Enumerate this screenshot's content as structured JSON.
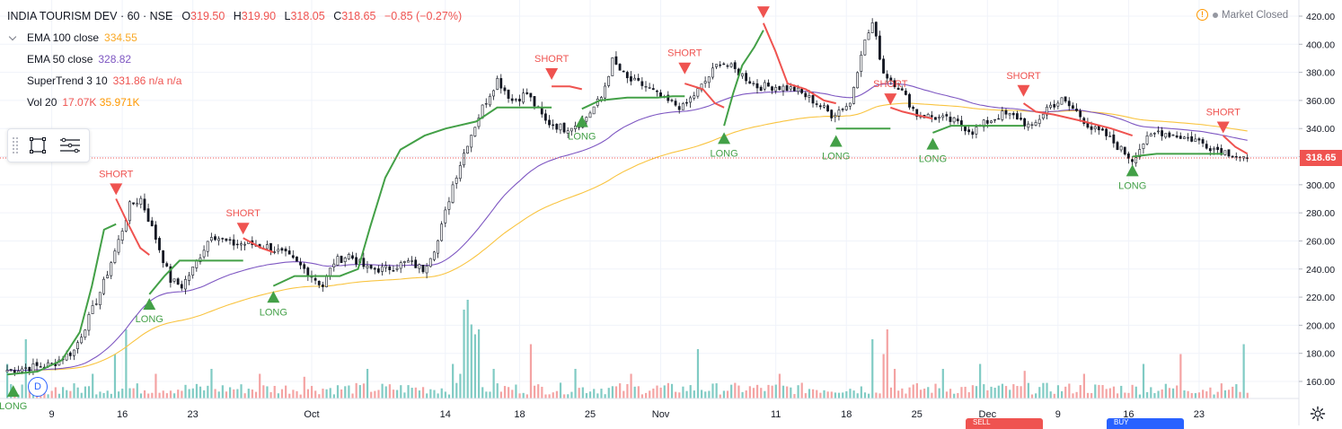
{
  "header": {
    "symbol": "INDIA TOURISM DEV · 60 · NSE",
    "open_label": "O",
    "open": "319.50",
    "high_label": "H",
    "high": "319.90",
    "low_label": "L",
    "low": "318.05",
    "close_label": "C",
    "close": "318.65",
    "change": "−0.85 (−0.27%)"
  },
  "indicators": {
    "ema100": {
      "name": "EMA 100 close",
      "value": "334.55"
    },
    "ema50": {
      "name": "EMA 50 close",
      "value": "328.82"
    },
    "supertrend": {
      "name": "SuperTrend 3 10",
      "value": "331.86",
      "extra": "n/a  n/a"
    },
    "volume": {
      "name": "Vol 20",
      "value1": "17.07K",
      "value2": "35.971K"
    }
  },
  "status": {
    "market": "Market Closed",
    "warning_glyph": "!"
  },
  "badges": {
    "dividend": "D",
    "last_price": "318.65"
  },
  "bottom_buttons": {
    "sell": "SELL",
    "buy": "BUY"
  },
  "colors": {
    "up": "#26a69a",
    "down": "#ef5350",
    "candle": "#131722",
    "ema100": "#f9c440",
    "ema50": "#7e57c2",
    "st_up": "#43a047",
    "st_down": "#ef5350",
    "vol_up": "#80cbc4",
    "vol_down": "#f4a3a3"
  },
  "chart_data": {
    "type": "candlestick",
    "title": "INDIA TOURISM DEV · 60 · NSE",
    "ylim": [
      150,
      425
    ],
    "y_ticks": [
      160,
      180,
      200,
      220,
      240,
      260,
      280,
      300,
      320,
      340,
      360,
      380,
      400,
      420
    ],
    "y_tick_labels": [
      "160.00",
      "180.00",
      "200.00",
      "220.00",
      "240.00",
      "260.00",
      "280.00",
      "300.00",
      "320.00",
      "340.00",
      "360.00",
      "380.00",
      "400.00",
      "420.00"
    ],
    "x_tick_labels": [
      "9",
      "16",
      "23",
      "Oct",
      "14",
      "18",
      "25",
      "Nov",
      "11",
      "18",
      "25",
      "Dec",
      "9",
      "16",
      "23"
    ],
    "x_tick_bars": [
      12,
      31,
      50,
      82,
      118,
      138,
      157,
      176,
      207,
      226,
      245,
      264,
      283,
      302,
      321
    ],
    "bar_count": 345,
    "price_keypoints": [
      [
        0,
        168
      ],
      [
        6,
        170
      ],
      [
        12,
        172
      ],
      [
        18,
        182
      ],
      [
        22,
        205
      ],
      [
        26,
        230
      ],
      [
        30,
        260
      ],
      [
        33,
        285
      ],
      [
        36,
        290
      ],
      [
        40,
        262
      ],
      [
        44,
        232
      ],
      [
        47,
        228
      ],
      [
        50,
        240
      ],
      [
        55,
        265
      ],
      [
        60,
        258
      ],
      [
        65,
        258
      ],
      [
        70,
        256
      ],
      [
        75,
        250
      ],
      [
        80,
        240
      ],
      [
        85,
        228
      ],
      [
        88,
        245
      ],
      [
        92,
        250
      ],
      [
        97,
        240
      ],
      [
        102,
        240
      ],
      [
        108,
        245
      ],
      [
        112,
        240
      ],
      [
        116,
        260
      ],
      [
        120,
        300
      ],
      [
        124,
        330
      ],
      [
        128,
        355
      ],
      [
        132,
        375
      ],
      [
        136,
        360
      ],
      [
        140,
        365
      ],
      [
        145,
        345
      ],
      [
        150,
        340
      ],
      [
        155,
        345
      ],
      [
        160,
        362
      ],
      [
        163,
        388
      ],
      [
        167,
        375
      ],
      [
        172,
        370
      ],
      [
        177,
        360
      ],
      [
        182,
        355
      ],
      [
        187,
        370
      ],
      [
        192,
        388
      ],
      [
        197,
        380
      ],
      [
        202,
        370
      ],
      [
        207,
        370
      ],
      [
        212,
        368
      ],
      [
        217,
        360
      ],
      [
        222,
        350
      ],
      [
        227,
        358
      ],
      [
        230,
        395
      ],
      [
        233,
        415
      ],
      [
        236,
        380
      ],
      [
        240,
        370
      ],
      [
        245,
        350
      ],
      [
        250,
        348
      ],
      [
        255,
        345
      ],
      [
        260,
        338
      ],
      [
        264,
        345
      ],
      [
        268,
        350
      ],
      [
        272,
        348
      ],
      [
        276,
        340
      ],
      [
        280,
        355
      ],
      [
        284,
        360
      ],
      [
        288,
        352
      ],
      [
        292,
        340
      ],
      [
        296,
        335
      ],
      [
        300,
        325
      ],
      [
        303,
        318
      ],
      [
        306,
        330
      ],
      [
        310,
        338
      ],
      [
        315,
        335
      ],
      [
        320,
        332
      ],
      [
        325,
        326
      ],
      [
        330,
        322
      ],
      [
        333,
        319
      ],
      [
        334,
        318.65
      ]
    ],
    "supertrend": [
      {
        "dir": "up",
        "start": 0,
        "points": [
          [
            0,
            165
          ],
          [
            10,
            167
          ],
          [
            18,
            175
          ],
          [
            24,
            195
          ],
          [
            28,
            228
          ],
          [
            32,
            268
          ],
          [
            36,
            272
          ]
        ]
      },
      {
        "dir": "down",
        "start": 36,
        "points": [
          [
            36,
            290
          ],
          [
            40,
            272
          ],
          [
            44,
            255
          ],
          [
            47,
            250
          ]
        ]
      },
      {
        "dir": "up",
        "start": 47,
        "points": [
          [
            47,
            222
          ],
          [
            52,
            235
          ],
          [
            57,
            246
          ],
          [
            62,
            246
          ],
          [
            70,
            246
          ],
          [
            78,
            246
          ]
        ]
      },
      {
        "dir": "down",
        "start": 78,
        "points": [
          [
            78,
            262
          ],
          [
            84,
            255
          ],
          [
            88,
            252
          ]
        ]
      },
      {
        "dir": "up",
        "start": 88,
        "points": [
          [
            88,
            228
          ],
          [
            95,
            235
          ],
          [
            102,
            235
          ],
          [
            110,
            235
          ],
          [
            116,
            240
          ],
          [
            120,
            270
          ],
          [
            125,
            305
          ],
          [
            130,
            325
          ],
          [
            138,
            335
          ],
          [
            145,
            340
          ],
          [
            155,
            345
          ],
          [
            162,
            355
          ],
          [
            172,
            355
          ],
          [
            180,
            355
          ]
        ]
      },
      {
        "dir": "down",
        "start": 180,
        "points": [
          [
            180,
            370
          ],
          [
            186,
            370
          ],
          [
            190,
            368
          ]
        ]
      },
      {
        "dir": "up",
        "start": 190,
        "points": [
          [
            190,
            354
          ],
          [
            196,
            360
          ],
          [
            205,
            362
          ],
          [
            215,
            362
          ],
          [
            220,
            363
          ],
          [
            224,
            363
          ]
        ]
      },
      {
        "dir": "down",
        "start": 224,
        "points": [
          [
            224,
            372
          ],
          [
            230,
            368
          ],
          [
            234,
            358
          ],
          [
            237,
            355
          ]
        ]
      },
      {
        "dir": "up",
        "start": 237,
        "points": [
          [
            237,
            342
          ],
          [
            240,
            365
          ],
          [
            243,
            385
          ],
          [
            247,
            398
          ],
          [
            250,
            410
          ]
        ]
      },
      {
        "dir": "down",
        "start": 250,
        "points": [
          [
            250,
            415
          ],
          [
            254,
            395
          ],
          [
            258,
            372
          ],
          [
            264,
            368
          ],
          [
            270,
            360
          ],
          [
            274,
            358
          ]
        ]
      },
      {
        "dir": "up",
        "start": 274,
        "points": [
          [
            274,
            340
          ],
          [
            280,
            340
          ],
          [
            288,
            340
          ],
          [
            292,
            340
          ]
        ]
      },
      {
        "dir": "down",
        "start": 292,
        "points": [
          [
            292,
            355
          ],
          [
            296,
            352
          ],
          [
            300,
            350
          ],
          [
            306,
            347
          ]
        ]
      },
      {
        "dir": "up",
        "start": 306,
        "points": [
          [
            306,
            337
          ],
          [
            312,
            342
          ],
          [
            320,
            342
          ],
          [
            326,
            342
          ],
          [
            332,
            342
          ],
          [
            336,
            342
          ]
        ]
      },
      {
        "dir": "down",
        "start": 336,
        "points": [
          [
            336,
            358
          ],
          [
            340,
            352
          ],
          [
            346,
            350
          ],
          [
            356,
            345
          ],
          [
            365,
            340
          ],
          [
            372,
            335
          ]
        ]
      },
      {
        "dir": "up",
        "start": 372,
        "points": [
          [
            372,
            320
          ],
          [
            380,
            322
          ],
          [
            390,
            322
          ],
          [
            402,
            322
          ]
        ]
      },
      {
        "dir": "down",
        "start": 402,
        "points": [
          [
            402,
            335
          ],
          [
            406,
            327
          ],
          [
            410,
            322
          ]
        ]
      }
    ],
    "signals": [
      {
        "label": "LONG",
        "bar": 2,
        "price": 158
      },
      {
        "label": "SHORT",
        "bar": 36,
        "price": 292
      },
      {
        "label": "LONG",
        "bar": 47,
        "price": 220
      },
      {
        "label": "SHORT",
        "bar": 78,
        "price": 264
      },
      {
        "label": "LONG",
        "bar": 88,
        "price": 225
      },
      {
        "label": "SHORT",
        "bar": 180,
        "price": 374
      },
      {
        "label": "LONG",
        "bar": 190,
        "price": 350
      },
      {
        "label": "SHORT",
        "bar": 224,
        "price": 378
      },
      {
        "label": "LONG",
        "bar": 237,
        "price": 338
      },
      {
        "label": "SHORT",
        "bar": 250,
        "price": 418
      },
      {
        "label": "LONG",
        "bar": 274,
        "price": 336
      },
      {
        "label": "SHORT",
        "bar": 292,
        "price": 356
      },
      {
        "label": "LONG",
        "bar": 306,
        "price": 334
      },
      {
        "label": "SHORT",
        "bar": 336,
        "price": 362
      },
      {
        "label": "LONG",
        "bar": 372,
        "price": 315
      },
      {
        "label": "SHORT",
        "bar": 402,
        "price": 336
      }
    ],
    "volume_spikes": [
      [
        0,
        0.35
      ],
      [
        5,
        0.6
      ],
      [
        23,
        0.25
      ],
      [
        29,
        0.45
      ],
      [
        32,
        0.7
      ],
      [
        40,
        0.25
      ],
      [
        55,
        0.3
      ],
      [
        68,
        0.25
      ],
      [
        80,
        0.22
      ],
      [
        97,
        0.3
      ],
      [
        120,
        0.35
      ],
      [
        122,
        0.25
      ],
      [
        123,
        0.9
      ],
      [
        124,
        1.0
      ],
      [
        125,
        0.75
      ],
      [
        126,
        0.65
      ],
      [
        127,
        0.7
      ],
      [
        131,
        0.3
      ],
      [
        141,
        0.55
      ],
      [
        153,
        0.3
      ],
      [
        168,
        0.25
      ],
      [
        186,
        0.5
      ],
      [
        208,
        0.25
      ],
      [
        233,
        0.6
      ],
      [
        236,
        0.45
      ],
      [
        237,
        0.7
      ],
      [
        239,
        0.3
      ],
      [
        252,
        0.3
      ],
      [
        262,
        0.35
      ],
      [
        274,
        0.28
      ],
      [
        290,
        0.25
      ],
      [
        306,
        0.35
      ],
      [
        316,
        0.45
      ],
      [
        333,
        0.55
      ]
    ],
    "last_price": 318.65
  }
}
